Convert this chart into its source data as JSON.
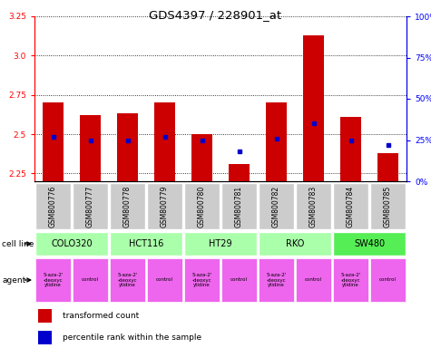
{
  "title": "GDS4397 / 228901_at",
  "samples": [
    "GSM800776",
    "GSM800777",
    "GSM800778",
    "GSM800779",
    "GSM800780",
    "GSM800781",
    "GSM800782",
    "GSM800783",
    "GSM800784",
    "GSM800785"
  ],
  "transformed_count": [
    2.7,
    2.62,
    2.63,
    2.7,
    2.5,
    2.31,
    2.7,
    3.13,
    2.61,
    2.38
  ],
  "percentile_rank": [
    27,
    25,
    25,
    27,
    25,
    18,
    26,
    35,
    25,
    22
  ],
  "ylim": [
    2.2,
    3.25
  ],
  "yticks": [
    2.25,
    2.5,
    2.75,
    3.0,
    3.25
  ],
  "y2lim": [
    0,
    100
  ],
  "y2ticks": [
    0,
    25,
    50,
    75,
    100
  ],
  "bar_color": "#cc0000",
  "dot_color": "#0000cc",
  "cell_lines": [
    {
      "name": "COLO320",
      "start": 0,
      "end": 2,
      "color": "#aaffaa"
    },
    {
      "name": "HCT116",
      "start": 2,
      "end": 4,
      "color": "#aaffaa"
    },
    {
      "name": "HT29",
      "start": 4,
      "end": 6,
      "color": "#aaffaa"
    },
    {
      "name": "RKO",
      "start": 6,
      "end": 8,
      "color": "#aaffaa"
    },
    {
      "name": "SW480",
      "start": 8,
      "end": 10,
      "color": "#55ee55"
    }
  ],
  "agents": [
    {
      "name": "5-aza-2'\n-deoxyc\nytidine",
      "start": 0,
      "end": 1,
      "color": "#ee66ee"
    },
    {
      "name": "control",
      "start": 1,
      "end": 2,
      "color": "#ee66ee"
    },
    {
      "name": "5-aza-2'\n-deoxyc\nytidine",
      "start": 2,
      "end": 3,
      "color": "#ee66ee"
    },
    {
      "name": "control",
      "start": 3,
      "end": 4,
      "color": "#ee66ee"
    },
    {
      "name": "5-aza-2'\n-deoxyc\nytidine",
      "start": 4,
      "end": 5,
      "color": "#ee66ee"
    },
    {
      "name": "control",
      "start": 5,
      "end": 6,
      "color": "#ee66ee"
    },
    {
      "name": "5-aza-2'\n-deoxyc\nytidine",
      "start": 6,
      "end": 7,
      "color": "#ee66ee"
    },
    {
      "name": "control",
      "start": 7,
      "end": 8,
      "color": "#ee66ee"
    },
    {
      "name": "5-aza-2'\n-deoxyc\nytidine",
      "start": 8,
      "end": 9,
      "color": "#ee66ee"
    },
    {
      "name": "control",
      "start": 9,
      "end": 10,
      "color": "#ee66ee"
    }
  ],
  "label_cell_line": "cell line",
  "label_agent": "agent",
  "legend_bar": "transformed count",
  "legend_dot": "percentile rank within the sample",
  "bar_bottom": 2.2
}
